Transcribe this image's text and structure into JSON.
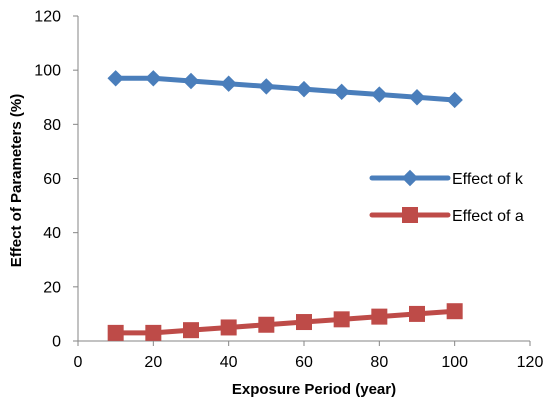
{
  "chart_data": {
    "type": "line",
    "xlabel": "Exposure Period (year)",
    "ylabel": "Effect of Parameters (%)",
    "xlim": [
      0,
      120
    ],
    "ylim": [
      0,
      120
    ],
    "xticks": [
      0,
      20,
      40,
      60,
      80,
      100,
      120
    ],
    "yticks": [
      0,
      20,
      40,
      60,
      80,
      100,
      120
    ],
    "grid": false,
    "legend_position": "right",
    "x": [
      10,
      20,
      30,
      40,
      50,
      60,
      70,
      80,
      90,
      100
    ],
    "series": [
      {
        "name": "Effect of k",
        "color": "#4a7ebb",
        "marker": "diamond",
        "values": [
          97,
          97,
          96,
          95,
          94,
          93,
          92,
          91,
          90,
          89
        ]
      },
      {
        "name": "Effect of a",
        "color": "#be4b48",
        "marker": "square",
        "values": [
          3,
          3,
          4,
          5,
          6,
          7,
          8,
          9,
          10,
          11
        ]
      }
    ]
  }
}
